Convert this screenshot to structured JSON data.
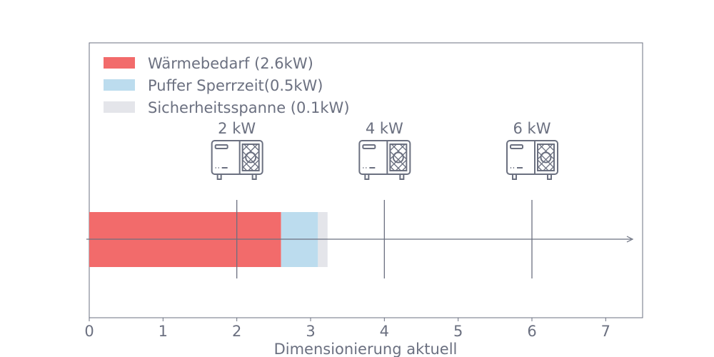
{
  "chart_data": {
    "type": "bar",
    "orientation": "horizontal",
    "stacked": true,
    "xlabel": "Dimensionierung aktuell",
    "xlim": [
      0,
      7.5
    ],
    "x_ticks": [
      "0",
      "1",
      "2",
      "3",
      "4",
      "5",
      "6",
      "7"
    ],
    "grid": false,
    "legend_position": "top-left",
    "series": [
      {
        "name": "Wärmebedarf (2.6kW)",
        "value": 2.6,
        "color": "#f26b6b"
      },
      {
        "name": "Puffer Sperrzeit(0.5kW)",
        "value": 0.5,
        "color": "#bcdcee"
      },
      {
        "name": "Sicherheitsspanne (0.1kW)",
        "value": 0.13,
        "color": "#e4e5ea"
      }
    ],
    "markers": [
      {
        "label": "2 kW",
        "x": 2,
        "icon": "heat-pump-icon"
      },
      {
        "label": "4 kW",
        "x": 4,
        "icon": "heat-pump-icon"
      },
      {
        "label": "6 kW",
        "x": 6,
        "icon": "heat-pump-icon"
      }
    ],
    "colors": {
      "text": "#6b7080",
      "axis": "#6b7080"
    }
  }
}
